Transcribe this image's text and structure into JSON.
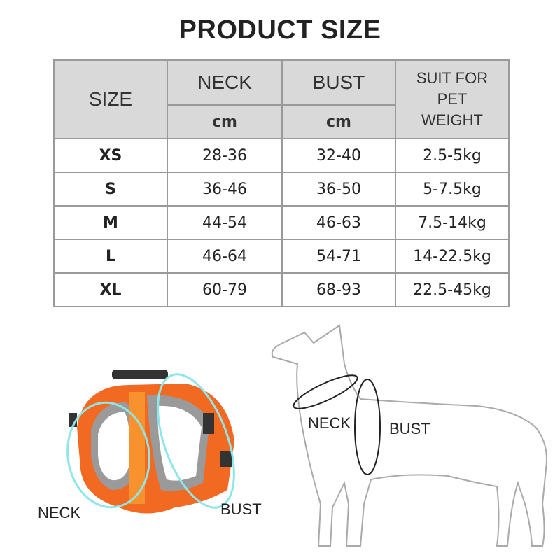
{
  "title": "PRODUCT SIZE",
  "table": {
    "headers": {
      "size": "SIZE",
      "neck": "NECK",
      "bust": "BUST",
      "weight": "SUIT FOR PET WEIGHT",
      "neck_unit": "cm",
      "bust_unit": "cm"
    },
    "rows": [
      {
        "size": "XS",
        "neck": "28-36",
        "bust": "32-40",
        "weight": "2.5-5kg"
      },
      {
        "size": "S",
        "neck": "36-46",
        "bust": "36-50",
        "weight": "5-7.5kg"
      },
      {
        "size": "M",
        "neck": "44-54",
        "bust": "46-63",
        "weight": "7.5-14kg"
      },
      {
        "size": "L",
        "neck": "46-64",
        "bust": "54-71",
        "weight": "14-22.5kg"
      },
      {
        "size": "XL",
        "neck": "60-79",
        "bust": "68-93",
        "weight": "22.5-45kg"
      }
    ]
  },
  "harness_labels": {
    "neck": "NECK",
    "bust": "BUST"
  },
  "dog_labels": {
    "neck": "NECK",
    "bust": "BUST"
  },
  "colors": {
    "harness": "#f26a21",
    "mesh": "#9a9a9a",
    "ring": "#8fe6ea",
    "header_bg": "#d9d9d9",
    "border": "#9a9a9a"
  }
}
